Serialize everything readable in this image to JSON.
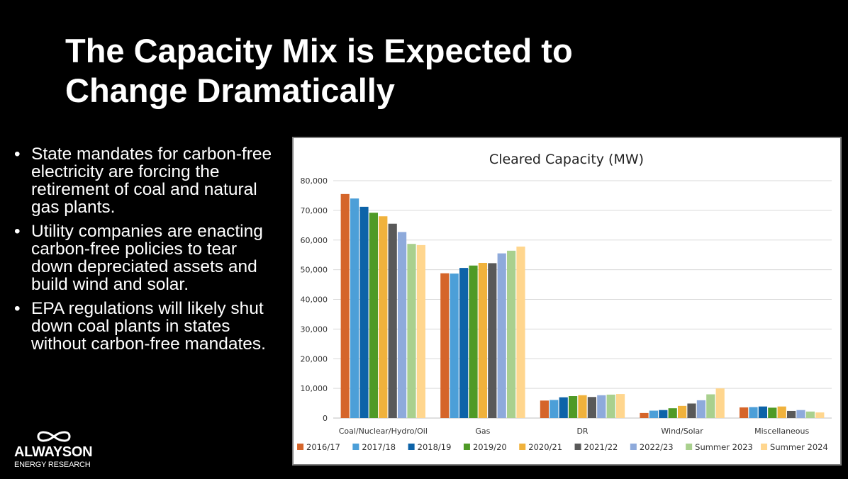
{
  "slide": {
    "title_line1": "The Capacity Mix is Expected to",
    "title_line2": "Change Dramatically",
    "bullets": [
      "State mandates for carbon-free electricity are forcing the retirement of coal and natural gas plants.",
      "Utility companies are enacting carbon-free policies to tear down depreciated assets and build wind and solar.",
      "EPA regulations will likely shut down coal plants in states without carbon-free mandates."
    ],
    "logo": {
      "wordmark": "ALWAYSON",
      "tagline": "ENERGY RESEARCH"
    }
  },
  "chart_data": {
    "type": "bar",
    "title": "Cleared Capacity (MW)",
    "xlabel": "",
    "ylabel": "",
    "ylim": [
      0,
      80000
    ],
    "yticks": [
      0,
      10000,
      20000,
      30000,
      40000,
      50000,
      60000,
      70000,
      80000
    ],
    "ytick_labels": [
      "0",
      "10,000",
      "20,000",
      "30,000",
      "40,000",
      "50,000",
      "60,000",
      "70,000",
      "80,000"
    ],
    "grid": true,
    "legend_position": "bottom",
    "categories": [
      "Coal/Nuclear/Hydro/Oil",
      "Gas",
      "DR",
      "Wind/Solar",
      "Miscellaneous"
    ],
    "series": [
      {
        "name": "2016/17",
        "color": "#d5652a",
        "values": [
          75500,
          48800,
          5900,
          1700,
          3600
        ]
      },
      {
        "name": "2017/18",
        "color": "#4c9fd8",
        "values": [
          74000,
          48700,
          6100,
          2500,
          3700
        ]
      },
      {
        "name": "2018/19",
        "color": "#0d63a8",
        "values": [
          71200,
          50600,
          7000,
          2700,
          3900
        ]
      },
      {
        "name": "2019/20",
        "color": "#4f9a26",
        "values": [
          69200,
          51400,
          7400,
          3300,
          3500
        ]
      },
      {
        "name": "2020/21",
        "color": "#f0b23c",
        "values": [
          68000,
          52300,
          7700,
          4100,
          3900
        ]
      },
      {
        "name": "2021/22",
        "color": "#595959",
        "values": [
          65500,
          52200,
          7100,
          4900,
          2400
        ]
      },
      {
        "name": "2022/23",
        "color": "#8eaadb",
        "values": [
          62700,
          55500,
          7700,
          6000,
          2700
        ]
      },
      {
        "name": "Summer 2023",
        "color": "#a9d08e",
        "values": [
          58700,
          56400,
          7900,
          8000,
          2200
        ]
      },
      {
        "name": "Summer 2024",
        "color": "#ffd68e",
        "values": [
          58300,
          57800,
          8100,
          10000,
          1900
        ]
      }
    ]
  }
}
